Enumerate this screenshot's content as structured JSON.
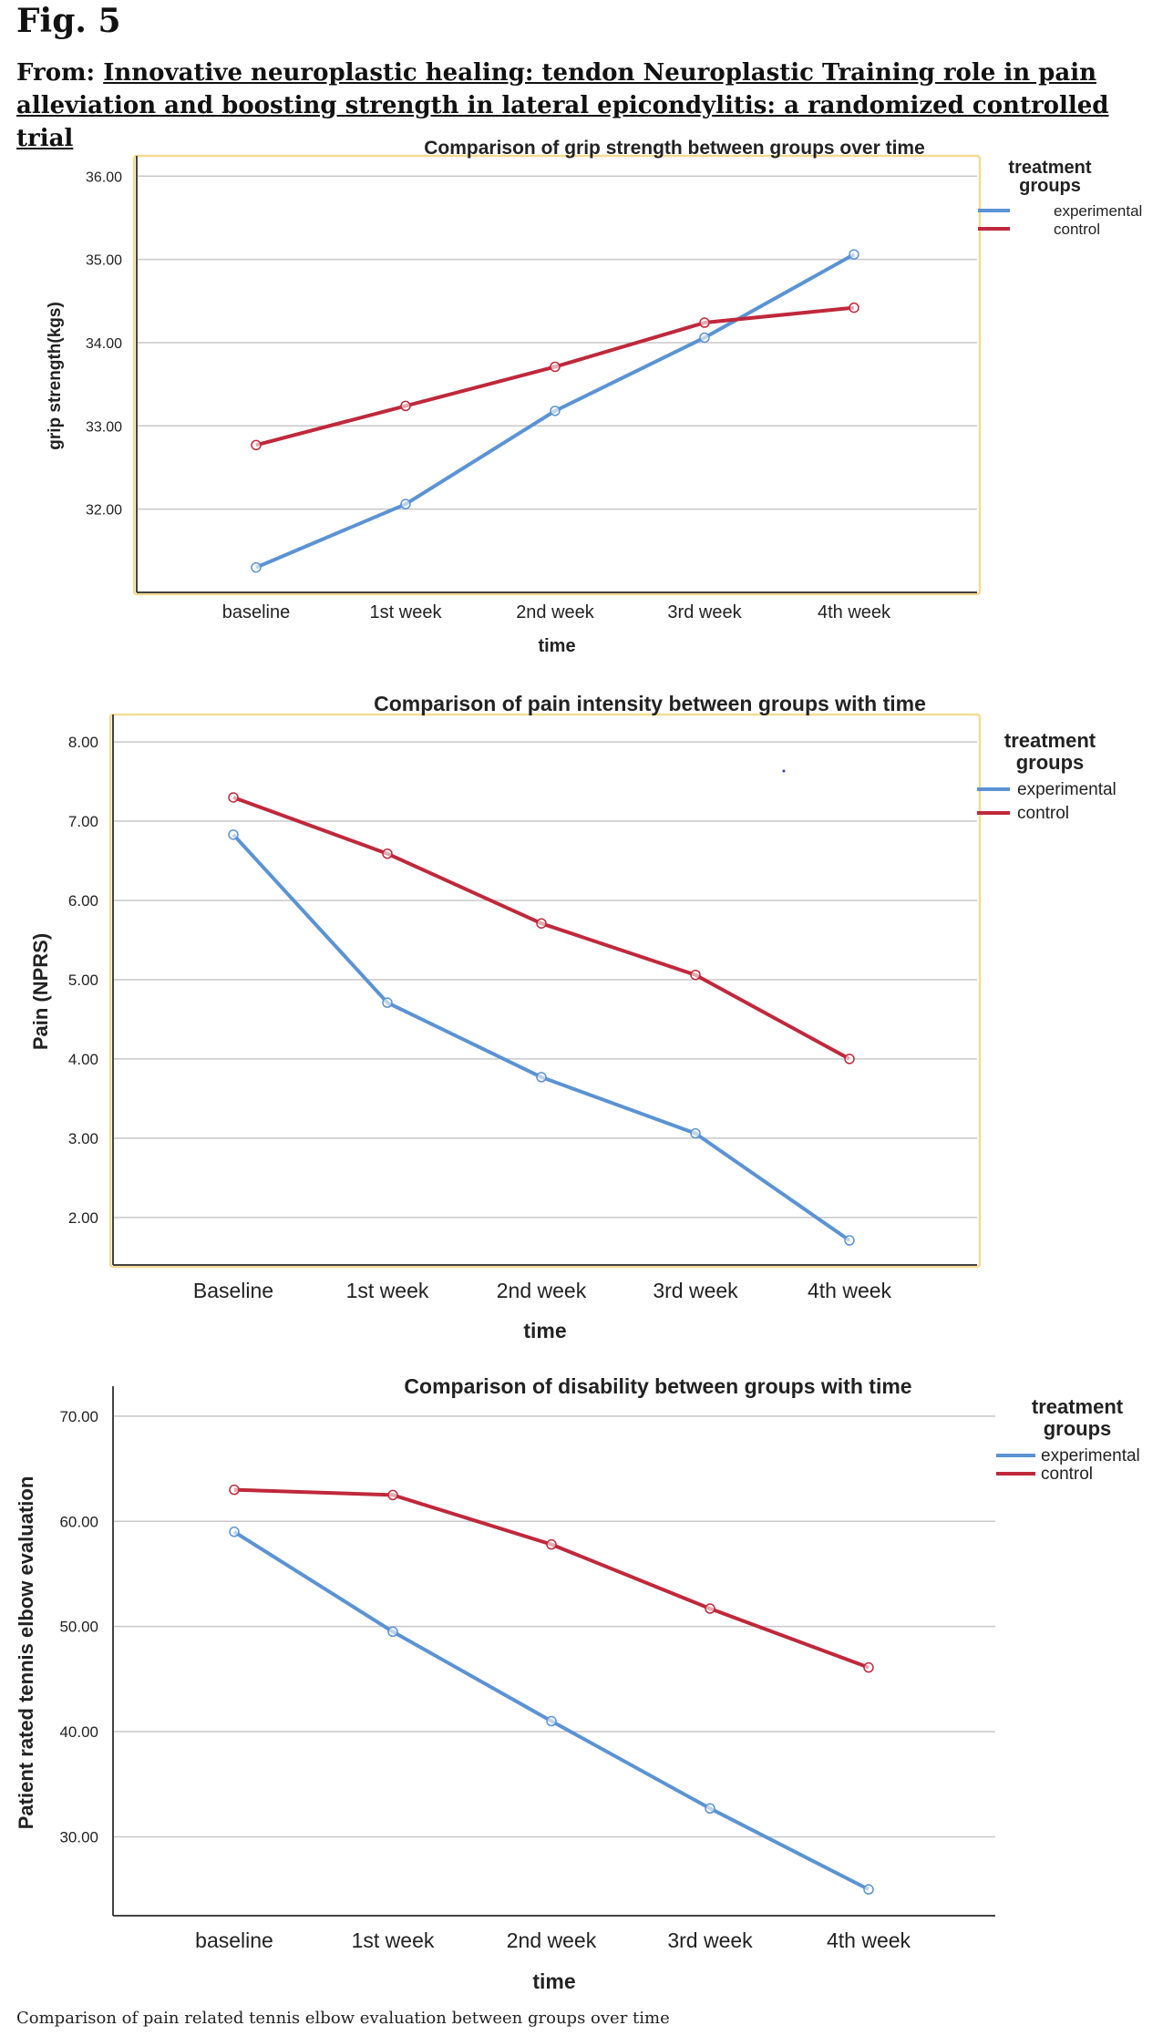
{
  "figure": {
    "label": "Fig. 5",
    "from_prefix": "From: ",
    "title": "Innovative neuroplastic healing: tendon Neuroplastic Training role in pain alleviation and boosting strength in lateral epicondylitis: a randomized controlled trial",
    "caption": "Comparison of pain related tennis elbow evaluation between groups over time"
  },
  "colors": {
    "experimental": "#5b93d3",
    "control": "#c0283b",
    "frame": "#f2dc93",
    "grid": "#c8c8c8",
    "axis": "#444444"
  },
  "chart_data": [
    {
      "type": "line",
      "title": "Comparison of grip strength between groups over time",
      "xlabel": "time",
      "ylabel": "grip strength(kgs)",
      "categories": [
        "baseline",
        "1st week",
        "2nd week",
        "3rd week",
        "4th week"
      ],
      "ylim": [
        31,
        36.2
      ],
      "yticks": [
        "32.00",
        "33.00",
        "34.00",
        "35.00",
        "36.00"
      ],
      "grid": true,
      "legend": {
        "title": "treatment groups",
        "position": "top-right"
      },
      "series": [
        {
          "name": "experimental",
          "values": [
            31.3,
            32.06,
            33.18,
            34.06,
            35.06
          ]
        },
        {
          "name": "control",
          "values": [
            32.77,
            33.24,
            33.71,
            34.24,
            34.42
          ]
        }
      ]
    },
    {
      "type": "line",
      "title": "Comparison of pain intensity between groups with time",
      "xlabel": "time",
      "ylabel": "Pain (NPRS)",
      "categories": [
        "Baseline",
        "1st week",
        "2nd week",
        "3rd week",
        "4th week"
      ],
      "ylim": [
        1.4,
        8.3
      ],
      "yticks": [
        "2.00",
        "3.00",
        "4.00",
        "5.00",
        "6.00",
        "7.00",
        "8.00"
      ],
      "grid": true,
      "legend": {
        "title": "treatment groups",
        "position": "top-right"
      },
      "series": [
        {
          "name": "experimental",
          "values": [
            6.83,
            4.71,
            3.77,
            3.06,
            1.71
          ]
        },
        {
          "name": "control",
          "values": [
            7.3,
            6.59,
            5.71,
            5.06,
            4.0
          ]
        }
      ]
    },
    {
      "type": "line",
      "title": "Comparison of disability between groups with time",
      "xlabel": "time",
      "ylabel": "Patient rated tennis elbow evaluation",
      "categories": [
        "baseline",
        "1st week",
        "2nd week",
        "3rd week",
        "4th week"
      ],
      "ylim": [
        22.5,
        72.5
      ],
      "yticks": [
        "30.00",
        "40.00",
        "50.00",
        "60.00",
        "70.00"
      ],
      "grid": true,
      "legend": {
        "title": "treatment groups",
        "position": "top-right"
      },
      "series": [
        {
          "name": "experimental",
          "values": [
            59.0,
            49.5,
            41.0,
            32.7,
            25.0
          ]
        },
        {
          "name": "control",
          "values": [
            63.0,
            62.5,
            57.8,
            51.7,
            46.1
          ]
        }
      ]
    }
  ]
}
